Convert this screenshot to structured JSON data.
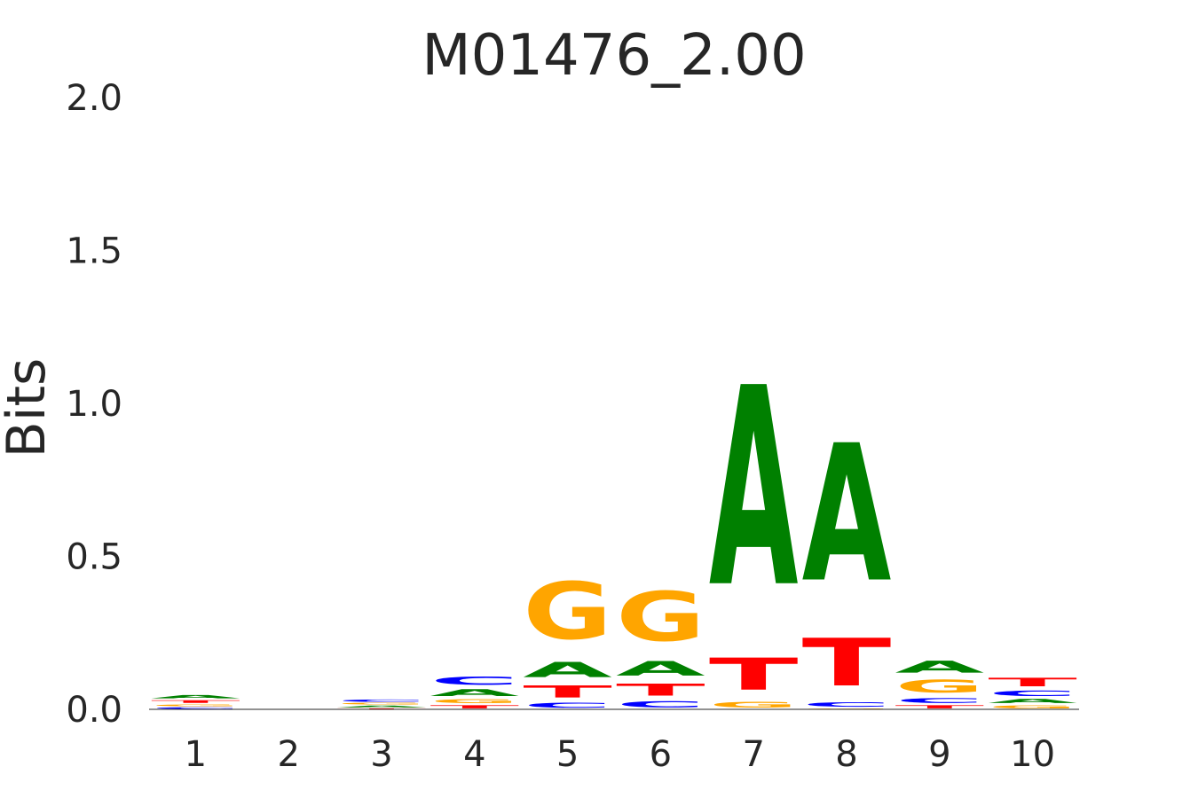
{
  "chart_data": {
    "type": "sequence-logo",
    "title": "M01476_2.00",
    "xlabel": "",
    "ylabel": "Bits",
    "ylim": [
      0,
      2.0
    ],
    "yticks": [
      "0.0",
      "0.5",
      "1.0",
      "1.5",
      "2.0"
    ],
    "ytick_values": [
      0,
      0.5,
      1.0,
      1.5,
      2.0
    ],
    "positions": [
      "1",
      "2",
      "3",
      "4",
      "5",
      "6",
      "7",
      "8",
      "9",
      "10"
    ],
    "colors": {
      "A": "#008000",
      "C": "#0000ff",
      "G": "#ffa500",
      "T": "#ff0000"
    },
    "stacks": [
      [
        {
          "letter": "C",
          "bits": 0.008
        },
        {
          "letter": "G",
          "bits": 0.01
        },
        {
          "letter": "T",
          "bits": 0.014
        },
        {
          "letter": "A",
          "bits": 0.018
        }
      ],
      [],
      [
        {
          "letter": "T",
          "bits": 0.004
        },
        {
          "letter": "A",
          "bits": 0.01
        },
        {
          "letter": "G",
          "bits": 0.008
        },
        {
          "letter": "C",
          "bits": 0.012
        }
      ],
      [
        {
          "letter": "T",
          "bits": 0.016
        },
        {
          "letter": "G",
          "bits": 0.02
        },
        {
          "letter": "A",
          "bits": 0.036
        },
        {
          "letter": "C",
          "bits": 0.042
        }
      ],
      [
        {
          "letter": "C",
          "bits": 0.026
        },
        {
          "letter": "T",
          "bits": 0.063
        },
        {
          "letter": "A",
          "bits": 0.08
        },
        {
          "letter": "G",
          "bits": 0.3
        }
      ],
      [
        {
          "letter": "C",
          "bits": 0.032
        },
        {
          "letter": "T",
          "bits": 0.063
        },
        {
          "letter": "A",
          "bits": 0.076
        },
        {
          "letter": "G",
          "bits": 0.26
        }
      ],
      [
        {
          "letter": "G",
          "bits": 0.03
        },
        {
          "letter": "T",
          "bits": 0.168
        },
        {
          "letter": "A",
          "bits": 1.045
        }
      ],
      [
        {
          "letter": "G",
          "bits": 0.004
        },
        {
          "letter": "C",
          "bits": 0.023
        },
        {
          "letter": "T",
          "bits": 0.25
        },
        {
          "letter": "A",
          "bits": 0.72
        }
      ],
      [
        {
          "letter": "T",
          "bits": 0.016
        },
        {
          "letter": "C",
          "bits": 0.025
        },
        {
          "letter": "G",
          "bits": 0.066
        },
        {
          "letter": "A",
          "bits": 0.063
        }
      ],
      [
        {
          "letter": "G",
          "bits": 0.016
        },
        {
          "letter": "A",
          "bits": 0.022
        },
        {
          "letter": "C",
          "bits": 0.028
        },
        {
          "letter": "T",
          "bits": 0.045
        }
      ]
    ]
  }
}
